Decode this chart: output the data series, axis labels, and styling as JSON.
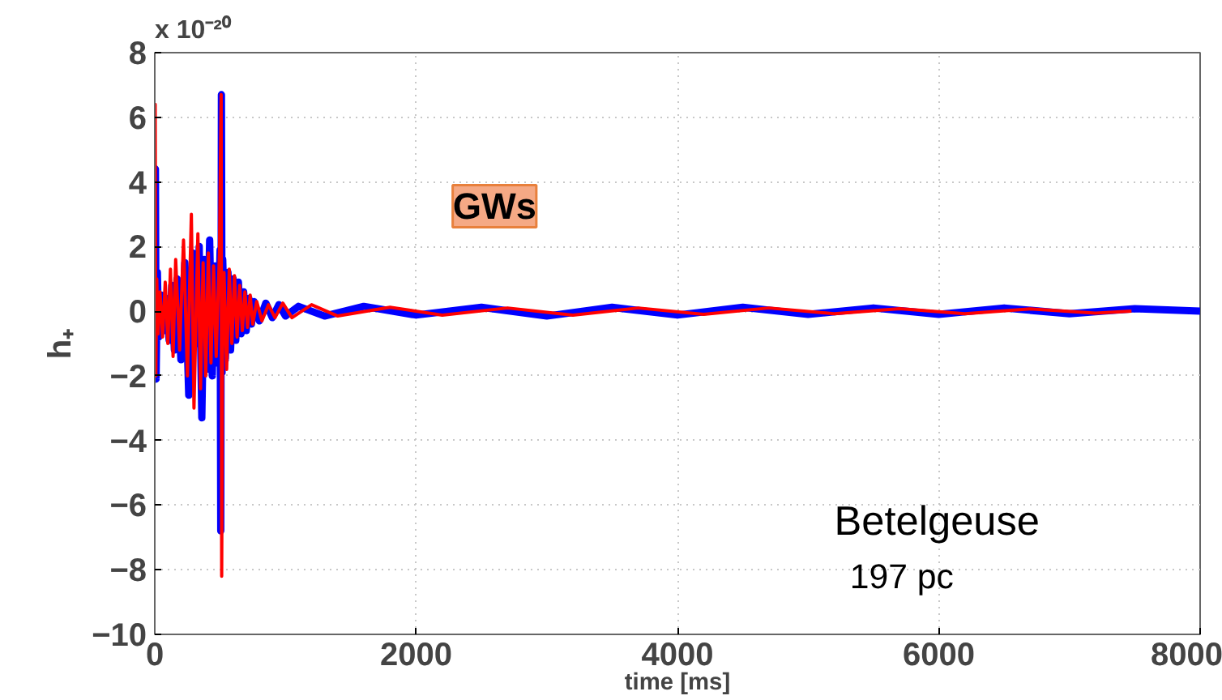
{
  "chart_data": {
    "type": "line",
    "xlabel": "time [ms]",
    "ylabel": "h₊",
    "annotations": [
      "x 10⁻²⁰",
      "GWs",
      "Betelgeuse",
      "197 pc"
    ],
    "xlim": [
      0,
      8000
    ],
    "xticks": [
      0,
      2000,
      4000,
      6000,
      8000
    ],
    "ylim": [
      -10,
      8
    ],
    "yticks": [
      -10,
      -8,
      -6,
      -4,
      -2,
      0,
      2,
      4,
      6,
      8
    ],
    "grid": true,
    "marker": "none",
    "line_style": "solid",
    "series": [
      {
        "color": "#0000ff",
        "x": [
          0,
          5,
          10,
          20,
          30,
          50,
          70,
          90,
          110,
          130,
          150,
          170,
          200,
          230,
          260,
          290,
          320,
          340,
          360,
          380,
          400,
          420,
          440,
          460,
          480,
          500,
          505,
          510,
          515,
          520,
          540,
          560,
          580,
          600,
          620,
          640,
          660,
          680,
          700,
          720,
          740,
          760,
          800,
          850,
          900,
          950,
          1000,
          1100,
          1300,
          1600,
          2000,
          2500,
          3000,
          3500,
          4000,
          4500,
          5000,
          5500,
          6000,
          6500,
          7000,
          7500,
          8000
        ],
        "values": [
          0,
          4.4,
          -2.1,
          1.2,
          -0.8,
          0.5,
          -0.6,
          0.4,
          -0.9,
          0.8,
          -1.2,
          1.0,
          -1.5,
          1.5,
          -2.6,
          1.8,
          -1.0,
          2.0,
          -3.3,
          1.6,
          -1.8,
          2.2,
          -2.0,
          1.4,
          -1.6,
          1.9,
          -6.8,
          6.7,
          -1.9,
          1.6,
          -1.5,
          1.2,
          -1.2,
          1.0,
          -0.9,
          0.9,
          -0.7,
          0.6,
          -0.6,
          0.4,
          -0.4,
          0.3,
          -0.3,
          0.25,
          -0.2,
          0.2,
          -0.15,
          0.15,
          -0.15,
          0.15,
          -0.12,
          0.12,
          -0.15,
          0.12,
          -0.12,
          0.12,
          -0.1,
          0.1,
          -0.1,
          0.1,
          -0.08,
          0.08,
          0
        ]
      },
      {
        "color": "#ff0000",
        "x": [
          0,
          3,
          8,
          15,
          25,
          40,
          60,
          80,
          100,
          120,
          140,
          160,
          190,
          220,
          250,
          280,
          300,
          330,
          350,
          370,
          390,
          410,
          430,
          450,
          470,
          495,
          508,
          512,
          518,
          530,
          550,
          570,
          590,
          610,
          630,
          650,
          670,
          690,
          710,
          730,
          750,
          780,
          820,
          870,
          920,
          980,
          1050,
          1200,
          1400,
          1800,
          2200,
          2700,
          3200,
          3700,
          4200,
          4700,
          5200,
          5700,
          6200,
          6700,
          7200,
          7475
        ],
        "values": [
          0,
          6.4,
          -2.0,
          1.0,
          -0.7,
          0.6,
          -0.8,
          0.9,
          -1.0,
          1.3,
          -1.4,
          1.6,
          -1.2,
          2.2,
          -2.0,
          3.0,
          -3.0,
          2.4,
          -2.4,
          1.5,
          -2.0,
          1.8,
          -1.6,
          1.4,
          -1.4,
          1.8,
          6.7,
          -8.2,
          -1.5,
          1.2,
          -1.8,
          1.3,
          -1.0,
          1.1,
          -0.8,
          0.8,
          -0.6,
          0.6,
          -0.5,
          0.5,
          -0.4,
          0.3,
          -0.3,
          0.2,
          -0.2,
          0.25,
          -0.2,
          0.2,
          -0.15,
          0.12,
          -0.12,
          0.1,
          -0.12,
          0.1,
          -0.1,
          0.1,
          -0.08,
          0.08,
          -0.08,
          0.07,
          -0.06,
          0
        ]
      }
    ]
  }
}
